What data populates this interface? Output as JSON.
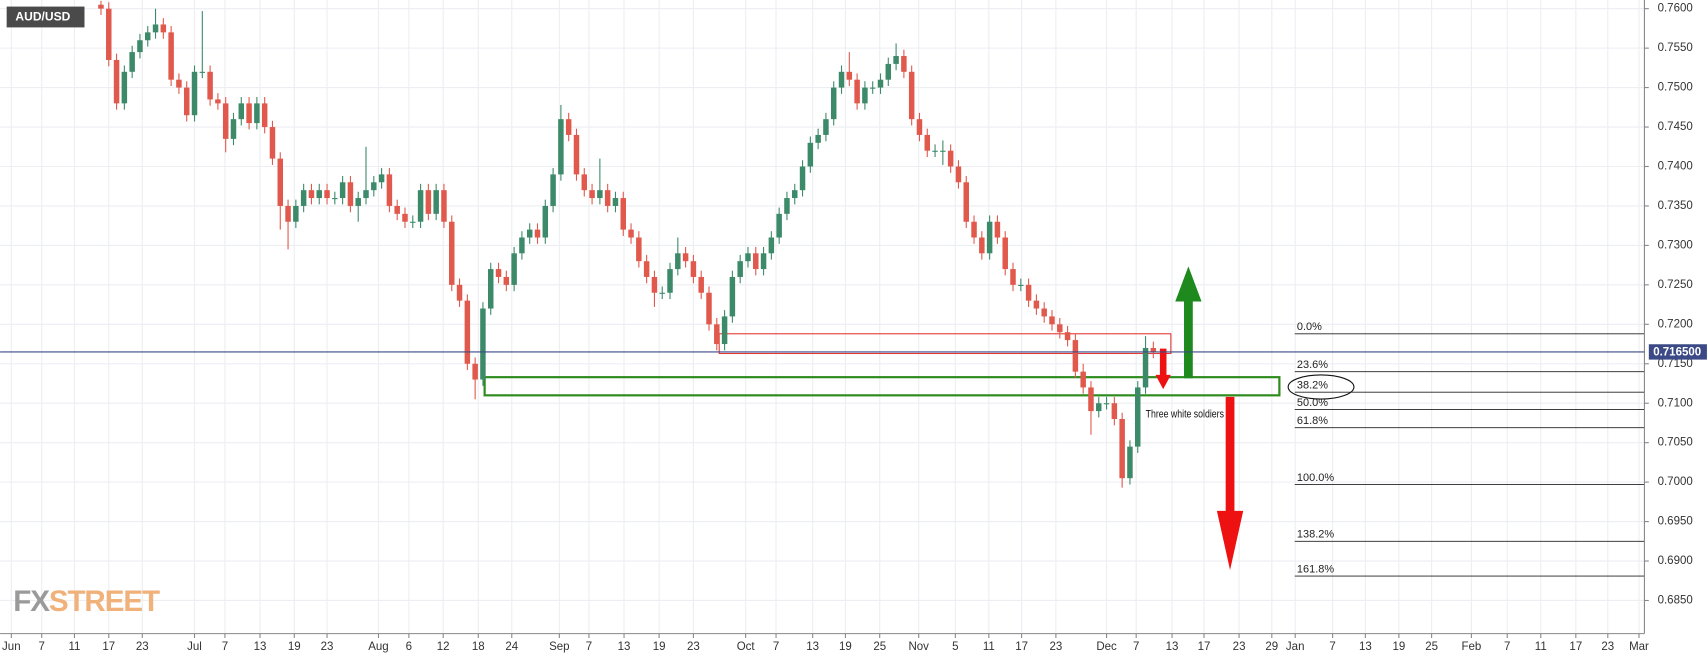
{
  "chart_data": {
    "type": "candlestick",
    "title": "AUD/USD",
    "logo_prefix": "FX",
    "logo_suffix": "STREET",
    "annotation": "Three white soldiers",
    "up_color": "#3d8a6a",
    "down_color": "#e0594c",
    "grid": true,
    "xlim": [
      0,
      210
    ],
    "ylim": [
      0.6808,
      0.7611
    ],
    "xticks": [
      {
        "value": 0.5,
        "label": "Jun"
      },
      {
        "value": 4.4,
        "label": "7"
      },
      {
        "value": 8.6,
        "label": "11"
      },
      {
        "value": 13.0,
        "label": "17"
      },
      {
        "value": 17.3,
        "label": "23"
      },
      {
        "value": 24.0,
        "label": "Jul"
      },
      {
        "value": 27.9,
        "label": "7"
      },
      {
        "value": 32.4,
        "label": "13"
      },
      {
        "value": 36.8,
        "label": "19"
      },
      {
        "value": 41.0,
        "label": "23"
      },
      {
        "value": 47.6,
        "label": "Aug"
      },
      {
        "value": 51.5,
        "label": "6"
      },
      {
        "value": 55.9,
        "label": "12"
      },
      {
        "value": 60.4,
        "label": "18"
      },
      {
        "value": 64.7,
        "label": "24"
      },
      {
        "value": 70.8,
        "label": "Sep"
      },
      {
        "value": 74.6,
        "label": "7"
      },
      {
        "value": 79.1,
        "label": "13"
      },
      {
        "value": 83.6,
        "label": "19"
      },
      {
        "value": 88.0,
        "label": "23"
      },
      {
        "value": 94.7,
        "label": "Oct"
      },
      {
        "value": 98.6,
        "label": "7"
      },
      {
        "value": 103.3,
        "label": "13"
      },
      {
        "value": 107.5,
        "label": "19"
      },
      {
        "value": 111.9,
        "label": "25"
      },
      {
        "value": 116.9,
        "label": "Nov"
      },
      {
        "value": 121.6,
        "label": "5"
      },
      {
        "value": 125.9,
        "label": "11"
      },
      {
        "value": 130.1,
        "label": "17"
      },
      {
        "value": 134.5,
        "label": "23"
      },
      {
        "value": 141.0,
        "label": "Dec"
      },
      {
        "value": 144.8,
        "label": "7"
      },
      {
        "value": 149.4,
        "label": "13"
      },
      {
        "value": 153.5,
        "label": "17"
      },
      {
        "value": 158.0,
        "label": "23"
      },
      {
        "value": 162.2,
        "label": "29"
      },
      {
        "value": 165.2,
        "label": "Jan"
      },
      {
        "value": 170.0,
        "label": "7"
      },
      {
        "value": 174.2,
        "label": "13"
      },
      {
        "value": 178.5,
        "label": "19"
      },
      {
        "value": 182.7,
        "label": "25"
      },
      {
        "value": 187.8,
        "label": "Feb"
      },
      {
        "value": 192.4,
        "label": "7"
      },
      {
        "value": 196.7,
        "label": "11"
      },
      {
        "value": 201.2,
        "label": "17"
      },
      {
        "value": 205.3,
        "label": "23"
      },
      {
        "value": 209.3,
        "label": "Mar"
      }
    ],
    "yticks": [
      {
        "value": 0.76,
        "label": "0.7600"
      },
      {
        "value": 0.755,
        "label": "0.7550"
      },
      {
        "value": 0.75,
        "label": "0.7500"
      },
      {
        "value": 0.745,
        "label": "0.7450"
      },
      {
        "value": 0.74,
        "label": "0.7400"
      },
      {
        "value": 0.735,
        "label": "0.7350"
      },
      {
        "value": 0.73,
        "label": "0.7300"
      },
      {
        "value": 0.725,
        "label": "0.7250"
      },
      {
        "value": 0.72,
        "label": "0.7200"
      },
      {
        "value": 0.715,
        "label": "0.7150"
      },
      {
        "value": 0.71,
        "label": "0.7100"
      },
      {
        "value": 0.705,
        "label": "0.7050"
      },
      {
        "value": 0.7,
        "label": "0.7000"
      },
      {
        "value": 0.695,
        "label": "0.6950"
      },
      {
        "value": 0.69,
        "label": "0.6900"
      },
      {
        "value": 0.685,
        "label": "0.6850"
      }
    ],
    "last_price": {
      "value": 0.7165,
      "label": "0.716500",
      "color": "#3b4a86"
    },
    "zones": [
      {
        "top": 0.7188,
        "bottom": 0.7163,
        "color": "#e53935"
      },
      {
        "top": 0.7133,
        "bottom": 0.711,
        "color": "#2e8b1e"
      }
    ],
    "fib_levels": [
      {
        "label": "0.0%",
        "price": 0.7188
      },
      {
        "label": "23.6%",
        "price": 0.714
      },
      {
        "label": "38.2%",
        "price": 0.7114
      },
      {
        "label": "50.0%",
        "price": 0.7092
      },
      {
        "label": "61.8%",
        "price": 0.7069
      },
      {
        "label": "100.0%",
        "price": 0.6997
      },
      {
        "label": "138.2%",
        "price": 0.6925
      },
      {
        "label": "161.8%",
        "price": 0.6881
      }
    ],
    "x": [
      12,
      13,
      14,
      15,
      16,
      17,
      18,
      19,
      20,
      21,
      22,
      23,
      24,
      25,
      26,
      27,
      28,
      29,
      30,
      31,
      32,
      33,
      34,
      35,
      36,
      37,
      38,
      39,
      40,
      41,
      42,
      43,
      44,
      45,
      46,
      47,
      48,
      49,
      50,
      51,
      52,
      53,
      54,
      55,
      56,
      57,
      58,
      59,
      60,
      61,
      62,
      63,
      64,
      65,
      66,
      67,
      68,
      69,
      70,
      71,
      72,
      73,
      74,
      75,
      76,
      77,
      78,
      79,
      80,
      81,
      82,
      83,
      84,
      85,
      86,
      87,
      88,
      89,
      90,
      91,
      92,
      93,
      94,
      95,
      96,
      97,
      98,
      99,
      100,
      101,
      102,
      103,
      104,
      105,
      106,
      107,
      108,
      109,
      110,
      111,
      112,
      113,
      114,
      115,
      116,
      117,
      118,
      119,
      120,
      121,
      122,
      123,
      124,
      125,
      126,
      127,
      128,
      129,
      130,
      131,
      132,
      133,
      134,
      135,
      136,
      137,
      138,
      139,
      140,
      141,
      142,
      143,
      144,
      145,
      146,
      147
    ],
    "open": [
      0.7605,
      0.76,
      0.7535,
      0.748,
      0.752,
      0.7545,
      0.756,
      0.757,
      0.758,
      0.757,
      0.751,
      0.75,
      0.7465,
      0.752,
      0.752,
      0.7485,
      0.748,
      0.7435,
      0.746,
      0.748,
      0.7455,
      0.748,
      0.745,
      0.741,
      0.735,
      0.733,
      0.735,
      0.737,
      0.736,
      0.737,
      0.736,
      0.736,
      0.738,
      0.735,
      0.736,
      0.737,
      0.738,
      0.739,
      0.735,
      0.734,
      0.733,
      0.733,
      0.737,
      0.734,
      0.737,
      0.733,
      0.725,
      0.723,
      0.715,
      0.713,
      0.722,
      0.727,
      0.726,
      0.725,
      0.729,
      0.731,
      0.732,
      0.731,
      0.735,
      0.739,
      0.746,
      0.744,
      0.739,
      0.737,
      0.736,
      0.737,
      0.735,
      0.736,
      0.732,
      0.731,
      0.728,
      0.726,
      0.724,
      0.724,
      0.727,
      0.729,
      0.728,
      0.726,
      0.724,
      0.72,
      0.7175,
      0.721,
      0.726,
      0.728,
      0.729,
      0.727,
      0.729,
      0.731,
      0.734,
      0.736,
      0.737,
      0.74,
      0.743,
      0.744,
      0.746,
      0.75,
      0.752,
      0.751,
      0.748,
      0.75,
      0.75,
      0.751,
      0.753,
      0.754,
      0.752,
      0.746,
      0.744,
      0.742,
      0.742,
      0.742,
      0.74,
      0.738,
      0.733,
      0.731,
      0.729,
      0.733,
      0.731,
      0.727,
      0.725,
      0.725,
      0.723,
      0.722,
      0.721,
      0.72,
      0.719,
      0.718,
      0.714,
      0.712,
      0.709,
      0.71,
      0.71,
      0.708,
      0.7005,
      0.7045,
      0.712,
      0.717
    ],
    "high": [
      0.761,
      0.7608,
      0.7543,
      0.7528,
      0.7553,
      0.7568,
      0.7578,
      0.76,
      0.7588,
      0.7578,
      0.7518,
      0.7508,
      0.7528,
      0.7597,
      0.7528,
      0.7493,
      0.7488,
      0.7468,
      0.7488,
      0.7488,
      0.7488,
      0.7488,
      0.7458,
      0.7418,
      0.7358,
      0.7358,
      0.7378,
      0.7378,
      0.7378,
      0.7378,
      0.7368,
      0.7388,
      0.7388,
      0.7368,
      0.7425,
      0.7388,
      0.7398,
      0.7398,
      0.7358,
      0.7348,
      0.7338,
      0.7378,
      0.7378,
      0.7378,
      0.7378,
      0.7338,
      0.7258,
      0.7238,
      0.7158,
      0.7228,
      0.7278,
      0.7278,
      0.7268,
      0.7298,
      0.7318,
      0.7328,
      0.7328,
      0.7358,
      0.7398,
      0.7478,
      0.7468,
      0.7448,
      0.7398,
      0.7378,
      0.741,
      0.7378,
      0.7368,
      0.7368,
      0.7328,
      0.7318,
      0.7288,
      0.7268,
      0.7248,
      0.7278,
      0.731,
      0.7298,
      0.7288,
      0.7268,
      0.7248,
      0.7208,
      0.7218,
      0.7268,
      0.7288,
      0.7298,
      0.7298,
      0.7298,
      0.7318,
      0.7348,
      0.7368,
      0.7378,
      0.7408,
      0.7438,
      0.7448,
      0.7468,
      0.7508,
      0.7528,
      0.7545,
      0.7518,
      0.7508,
      0.7508,
      0.7518,
      0.7538,
      0.7556,
      0.7548,
      0.7528,
      0.7468,
      0.7448,
      0.7428,
      0.7433,
      0.7428,
      0.7408,
      0.7388,
      0.7338,
      0.7318,
      0.7338,
      0.7338,
      0.7318,
      0.7278,
      0.7258,
      0.7258,
      0.7238,
      0.7228,
      0.7218,
      0.7208,
      0.7198,
      0.7188,
      0.715,
      0.7128,
      0.7108,
      0.7108,
      0.7108,
      0.7088,
      0.7053,
      0.7128,
      0.7185,
      0.7178
    ],
    "low": [
      0.7592,
      0.7527,
      0.7472,
      0.7472,
      0.7512,
      0.7537,
      0.7552,
      0.7562,
      0.7562,
      0.7502,
      0.7492,
      0.7457,
      0.7457,
      0.7512,
      0.7477,
      0.7472,
      0.7418,
      0.7427,
      0.7452,
      0.7447,
      0.7447,
      0.7442,
      0.7402,
      0.732,
      0.7295,
      0.7322,
      0.7342,
      0.7352,
      0.7352,
      0.7352,
      0.7352,
      0.7352,
      0.7342,
      0.733,
      0.7352,
      0.7362,
      0.7372,
      0.7342,
      0.7332,
      0.7322,
      0.7322,
      0.7322,
      0.7332,
      0.7332,
      0.7322,
      0.7242,
      0.7222,
      0.7142,
      0.7105,
      0.7122,
      0.7212,
      0.7252,
      0.7242,
      0.7242,
      0.7282,
      0.7302,
      0.7302,
      0.7302,
      0.7342,
      0.7382,
      0.7432,
      0.7382,
      0.7362,
      0.7352,
      0.7352,
      0.7342,
      0.7342,
      0.7312,
      0.7302,
      0.7272,
      0.7252,
      0.7222,
      0.7232,
      0.7232,
      0.7262,
      0.7272,
      0.7252,
      0.7232,
      0.7192,
      0.7167,
      0.7167,
      0.7202,
      0.7252,
      0.7272,
      0.7262,
      0.7262,
      0.7282,
      0.7302,
      0.7332,
      0.7352,
      0.7362,
      0.7392,
      0.7422,
      0.7432,
      0.7452,
      0.7492,
      0.7502,
      0.7472,
      0.7472,
      0.7492,
      0.7492,
      0.7502,
      0.7522,
      0.7512,
      0.7452,
      0.7432,
      0.7412,
      0.7412,
      0.7402,
      0.7392,
      0.7372,
      0.7322,
      0.7302,
      0.7282,
      0.7282,
      0.7302,
      0.7262,
      0.7242,
      0.7242,
      0.7222,
      0.7212,
      0.7202,
      0.7192,
      0.7182,
      0.7172,
      0.7132,
      0.7112,
      0.706,
      0.7082,
      0.7092,
      0.7072,
      0.6993,
      0.6997,
      0.7037,
      0.7112,
      0.7157
    ],
    "close": [
      0.76,
      0.7535,
      0.748,
      0.752,
      0.7545,
      0.756,
      0.757,
      0.758,
      0.757,
      0.751,
      0.75,
      0.7465,
      0.752,
      0.752,
      0.7485,
      0.748,
      0.7435,
      0.746,
      0.748,
      0.7455,
      0.748,
      0.745,
      0.741,
      0.735,
      0.733,
      0.735,
      0.737,
      0.736,
      0.737,
      0.736,
      0.736,
      0.738,
      0.735,
      0.736,
      0.737,
      0.738,
      0.739,
      0.735,
      0.734,
      0.733,
      0.733,
      0.737,
      0.734,
      0.737,
      0.733,
      0.725,
      0.723,
      0.715,
      0.713,
      0.722,
      0.727,
      0.726,
      0.725,
      0.729,
      0.731,
      0.732,
      0.731,
      0.735,
      0.739,
      0.746,
      0.744,
      0.739,
      0.737,
      0.736,
      0.737,
      0.735,
      0.736,
      0.732,
      0.731,
      0.728,
      0.726,
      0.724,
      0.724,
      0.727,
      0.729,
      0.728,
      0.726,
      0.724,
      0.72,
      0.7175,
      0.721,
      0.726,
      0.728,
      0.729,
      0.727,
      0.729,
      0.731,
      0.734,
      0.736,
      0.737,
      0.74,
      0.743,
      0.744,
      0.746,
      0.75,
      0.752,
      0.751,
      0.748,
      0.75,
      0.75,
      0.751,
      0.753,
      0.754,
      0.752,
      0.746,
      0.744,
      0.742,
      0.742,
      0.742,
      0.74,
      0.738,
      0.733,
      0.731,
      0.729,
      0.733,
      0.731,
      0.727,
      0.725,
      0.725,
      0.723,
      0.722,
      0.721,
      0.72,
      0.719,
      0.718,
      0.714,
      0.712,
      0.709,
      0.71,
      0.71,
      0.708,
      0.7005,
      0.7045,
      0.712,
      0.717,
      0.7165
    ]
  }
}
